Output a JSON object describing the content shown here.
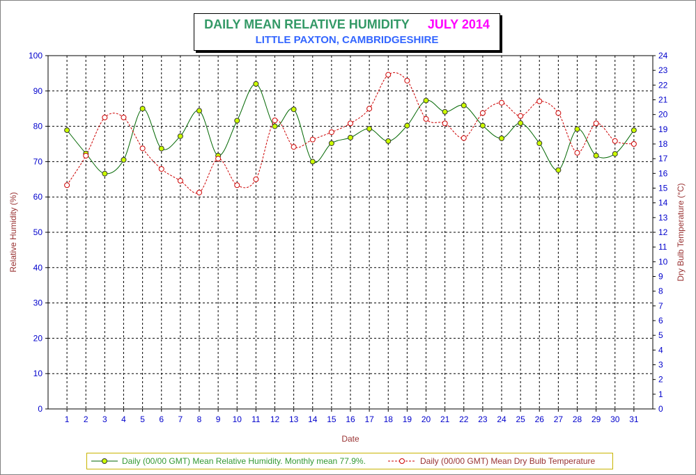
{
  "chart_data": {
    "type": "line",
    "title": "DAILY MEAN RELATIVE HUMIDITY",
    "title_month": "JULY 2014",
    "subtitle": "LITTLE PAXTON, CAMBRIDGESHIRE",
    "xlabel": "Date",
    "ylabel_left": "Relative Humidity (%)",
    "ylabel_right": "Dry Bulb Temperature (°C)",
    "x": [
      1,
      2,
      3,
      4,
      5,
      6,
      7,
      8,
      9,
      10,
      11,
      12,
      13,
      14,
      15,
      16,
      17,
      18,
      19,
      20,
      21,
      22,
      23,
      24,
      25,
      26,
      27,
      28,
      29,
      30,
      31
    ],
    "ylim_left": [
      0,
      100
    ],
    "yticks_left": [
      0,
      10,
      20,
      30,
      40,
      50,
      60,
      70,
      80,
      90,
      100
    ],
    "ylim_right": [
      0,
      24
    ],
    "yticks_right": [
      0,
      1,
      2,
      3,
      4,
      5,
      6,
      7,
      8,
      9,
      10,
      11,
      12,
      13,
      14,
      15,
      16,
      17,
      18,
      19,
      20,
      21,
      22,
      23,
      24
    ],
    "grid": true,
    "legend_position": "bottom",
    "series": [
      {
        "name": "Daily (00/00 GMT) Mean Relative Humidity. Monthly mean 77.9%.",
        "axis": "left",
        "color": "#006600",
        "marker_color": "#ccff00",
        "line_style": "solid",
        "values": [
          78.9,
          72.3,
          66.6,
          70.5,
          85.0,
          73.7,
          77.2,
          84.4,
          71.7,
          81.6,
          92.0,
          80.0,
          84.8,
          70.0,
          75.2,
          76.8,
          79.3,
          75.8,
          80.2,
          87.3,
          84.1,
          85.9,
          80.2,
          76.6,
          80.9,
          75.2,
          67.6,
          79.2,
          71.7,
          72.2,
          78.9
        ]
      },
      {
        "name": "Daily (00/00 GMT) Mean Dry Bulb Temperature",
        "axis": "right",
        "color": "#cc0000",
        "marker_color": "#ffffff",
        "line_style": "dashed",
        "values": [
          15.2,
          17.2,
          19.8,
          19.8,
          17.7,
          16.3,
          15.5,
          14.7,
          17.0,
          15.2,
          15.6,
          19.6,
          17.8,
          18.3,
          18.8,
          19.4,
          20.4,
          22.7,
          22.3,
          19.7,
          19.4,
          18.4,
          20.1,
          20.8,
          19.9,
          20.9,
          20.1,
          17.4,
          19.4,
          18.2,
          18.0
        ]
      }
    ]
  }
}
